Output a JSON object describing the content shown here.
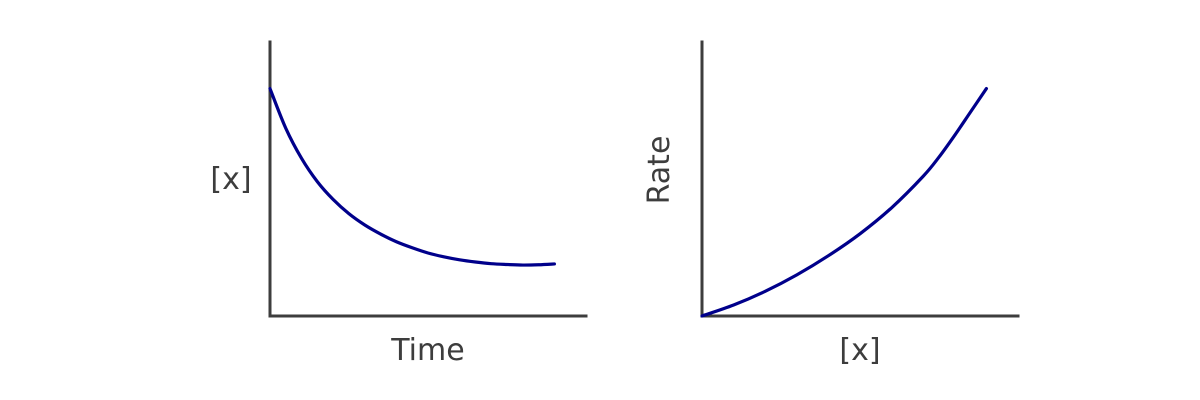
{
  "colors": {
    "axis": "#3d3d3d",
    "curve": "#00008b",
    "background": "#ffffff"
  },
  "chart_data": [
    {
      "type": "line",
      "title": "",
      "xlabel": "Time",
      "ylabel": "[x]",
      "xlim": [
        0,
        10
      ],
      "ylim": [
        0,
        10
      ],
      "grid": false,
      "legend": "none",
      "ticks": false,
      "series": [
        {
          "x": [
            0,
            0.5,
            1,
            1.5,
            2,
            2.5,
            3,
            3.5,
            4,
            4.5,
            5,
            5.5,
            6,
            6.5,
            7,
            7.5,
            8,
            8.5,
            9
          ],
          "y": [
            8.3,
            6.85,
            5.75,
            4.9,
            4.25,
            3.73,
            3.32,
            2.99,
            2.71,
            2.49,
            2.3,
            2.16,
            2.05,
            1.97,
            1.91,
            1.88,
            1.86,
            1.87,
            1.9
          ]
        }
      ]
    },
    {
      "type": "line",
      "title": "",
      "xlabel": "[x]",
      "ylabel": "Rate",
      "xlim": [
        0,
        10
      ],
      "ylim": [
        0,
        10
      ],
      "grid": false,
      "legend": "none",
      "ticks": false,
      "series": [
        {
          "x": [
            0,
            1,
            2,
            3,
            4,
            5,
            6,
            7,
            7.5,
            8,
            8.5,
            9
          ],
          "y": [
            0,
            0.4,
            0.9,
            1.5,
            2.2,
            3.0,
            3.95,
            5.1,
            5.8,
            6.6,
            7.45,
            8.3
          ]
        }
      ]
    }
  ]
}
